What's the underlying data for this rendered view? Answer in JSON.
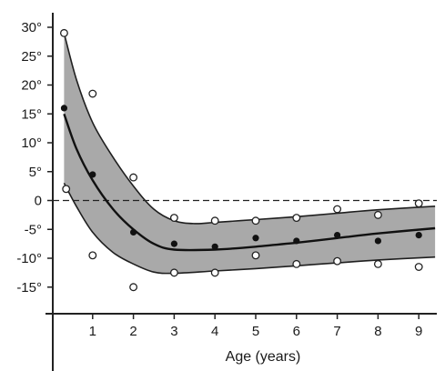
{
  "chart_data": {
    "type": "scatter",
    "title": "",
    "xlabel": "Age (years)",
    "ylabel": "",
    "xlim": [
      0,
      9.4
    ],
    "ylim": [
      -17,
      30
    ],
    "x_ticks": [
      1,
      2,
      3,
      4,
      5,
      6,
      7,
      8,
      9
    ],
    "x_tick_labels": [
      "1",
      "2",
      "3",
      "4",
      "5",
      "6",
      "7",
      "8",
      "9"
    ],
    "y_ticks": [
      30,
      25,
      20,
      15,
      10,
      5,
      0,
      -5,
      -10,
      -15
    ],
    "y_tick_labels": [
      "30°",
      "25°",
      "20°",
      "15°",
      "10°",
      "5°",
      "0",
      "-5°",
      "-10°",
      "-15°"
    ],
    "grid": false,
    "reference_line": {
      "y": 0,
      "style": "dashed"
    },
    "colors": {
      "band": "#a9a9a9",
      "band_edge": "#1f1f1f",
      "mean_line": "#111111",
      "mean_points": "#111111",
      "open_points_fill": "#ffffff",
      "open_points_stroke": "#222222",
      "axis": "#222222"
    },
    "series": [
      {
        "role": "mean",
        "marker": "filled",
        "points": [
          {
            "x": 0.3,
            "y": 16
          },
          {
            "x": 1,
            "y": 4.5
          },
          {
            "x": 2,
            "y": -5.5
          },
          {
            "x": 3,
            "y": -7.5
          },
          {
            "x": 4,
            "y": -8
          },
          {
            "x": 5,
            "y": -6.5
          },
          {
            "x": 6,
            "y": -7
          },
          {
            "x": 7,
            "y": -6
          },
          {
            "x": 8,
            "y": -7
          },
          {
            "x": 9,
            "y": -6
          }
        ]
      },
      {
        "role": "range",
        "marker": "open",
        "points": [
          {
            "x": 0.3,
            "y": 29
          },
          {
            "x": 0.35,
            "y": 2
          },
          {
            "x": 1,
            "y": 18.5
          },
          {
            "x": 1,
            "y": -9.5
          },
          {
            "x": 2,
            "y": 4
          },
          {
            "x": 2,
            "y": -15
          },
          {
            "x": 3,
            "y": -3
          },
          {
            "x": 3,
            "y": -12.5
          },
          {
            "x": 4,
            "y": -3.5
          },
          {
            "x": 4,
            "y": -12.5
          },
          {
            "x": 5,
            "y": -3.5
          },
          {
            "x": 5,
            "y": -9.5
          },
          {
            "x": 6,
            "y": -3
          },
          {
            "x": 6,
            "y": -11
          },
          {
            "x": 7,
            "y": -1.5
          },
          {
            "x": 7,
            "y": -10.5
          },
          {
            "x": 8,
            "y": -2.5
          },
          {
            "x": 8,
            "y": -11
          },
          {
            "x": 9,
            "y": -0.5
          },
          {
            "x": 9,
            "y": -11.5
          }
        ]
      }
    ],
    "mean_curve": [
      {
        "x": 0.3,
        "y": 15
      },
      {
        "x": 0.6,
        "y": 9
      },
      {
        "x": 1,
        "y": 3.5
      },
      {
        "x": 1.5,
        "y": -1.5
      },
      {
        "x": 2,
        "y": -5
      },
      {
        "x": 2.5,
        "y": -7.5
      },
      {
        "x": 3,
        "y": -8.5
      },
      {
        "x": 4,
        "y": -8.5
      },
      {
        "x": 5,
        "y": -8
      },
      {
        "x": 6,
        "y": -7.3
      },
      {
        "x": 7,
        "y": -6.5
      },
      {
        "x": 8,
        "y": -5.7
      },
      {
        "x": 9.4,
        "y": -4.8
      }
    ],
    "band_upper": [
      {
        "x": 0.3,
        "y": 29
      },
      {
        "x": 0.6,
        "y": 21
      },
      {
        "x": 1,
        "y": 13.5
      },
      {
        "x": 1.5,
        "y": 7.5
      },
      {
        "x": 2,
        "y": 2.5
      },
      {
        "x": 2.5,
        "y": -1.5
      },
      {
        "x": 3,
        "y": -3.5
      },
      {
        "x": 3.5,
        "y": -4
      },
      {
        "x": 4,
        "y": -3.8
      },
      {
        "x": 5,
        "y": -3.3
      },
      {
        "x": 6,
        "y": -2.8
      },
      {
        "x": 7,
        "y": -2.2
      },
      {
        "x": 8,
        "y": -1.6
      },
      {
        "x": 9.4,
        "y": -1
      }
    ],
    "band_lower": [
      {
        "x": 9.4,
        "y": -9.8
      },
      {
        "x": 8,
        "y": -10.3
      },
      {
        "x": 7,
        "y": -10.8
      },
      {
        "x": 6,
        "y": -11.3
      },
      {
        "x": 5,
        "y": -11.8
      },
      {
        "x": 4,
        "y": -12.2
      },
      {
        "x": 3,
        "y": -12.6
      },
      {
        "x": 2.5,
        "y": -12.4
      },
      {
        "x": 2,
        "y": -11
      },
      {
        "x": 1.5,
        "y": -9
      },
      {
        "x": 1,
        "y": -5.5
      },
      {
        "x": 0.6,
        "y": -1
      },
      {
        "x": 0.3,
        "y": 3
      }
    ]
  }
}
